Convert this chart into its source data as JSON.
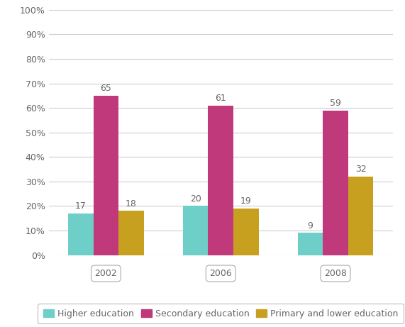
{
  "years": [
    "2002",
    "2006",
    "2008"
  ],
  "higher_education": [
    17,
    20,
    9
  ],
  "secondary_education": [
    65,
    61,
    59
  ],
  "primary_lower_education": [
    18,
    19,
    32
  ],
  "colors": {
    "higher": "#6ecec8",
    "secondary": "#c0397a",
    "primary": "#c8a020"
  },
  "legend_labels": [
    "Higher education",
    "Secondary education",
    "Primary and lower education"
  ],
  "ylim": [
    0,
    100
  ],
  "yticks": [
    0,
    10,
    20,
    30,
    40,
    50,
    60,
    70,
    80,
    90,
    100
  ],
  "ytick_labels": [
    "0%",
    "10%",
    "20%",
    "30%",
    "40%",
    "50%",
    "60%",
    "70%",
    "80%",
    "90%",
    "100%"
  ],
  "bar_width": 0.22,
  "background_color": "#ffffff",
  "grid_color": "#cccccc",
  "tick_fontsize": 9,
  "legend_fontsize": 9,
  "value_fontsize": 9,
  "text_color": "#666666"
}
